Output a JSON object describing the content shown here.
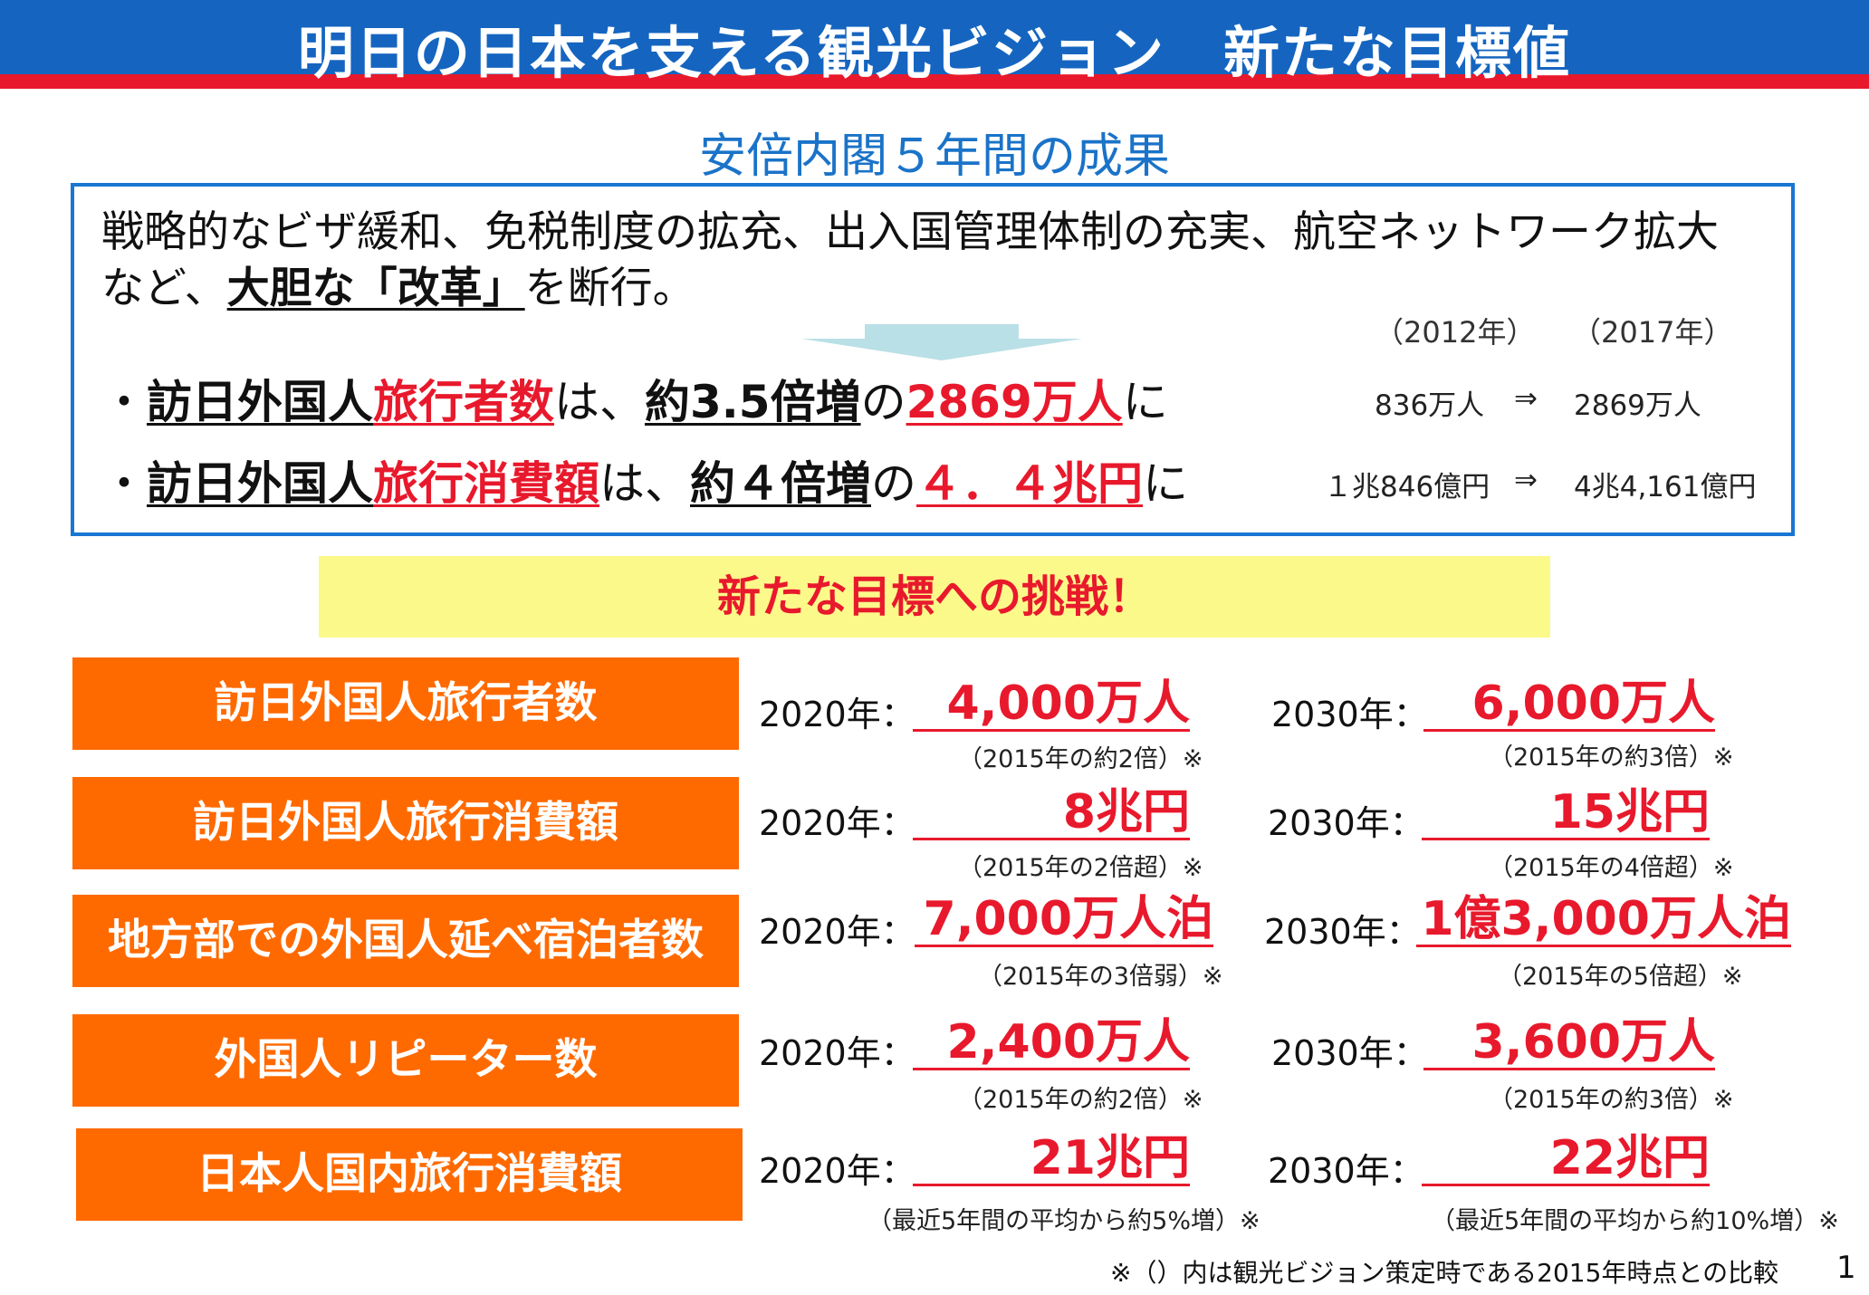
{
  "header": {
    "title": "明日の日本を支える観光ビジョン　新たな目標値"
  },
  "subtitle": "安倍内閣５年間の成果",
  "results": {
    "intro_line1": "戦略的なビザ緩和、免税制度の拡充、出入国管理体制の充実、航空ネットワーク拡大",
    "intro_line2_a": "など、",
    "intro_line2_b": "大胆な「改革」",
    "intro_line2_c": "を断行。",
    "year_from": "（2012年）",
    "year_to": "（2017年）",
    "bullet1": {
      "dot": "・",
      "a": "訪日外国人",
      "b": "旅行者数",
      "c": "は、",
      "d": "約3.5倍増",
      "e": "の",
      "f": "2869万人",
      "g": "に",
      "from": "836万人",
      "arrow": "⇒",
      "to": "2869万人"
    },
    "bullet2": {
      "dot": "・",
      "a": "訪日外国人",
      "b": "旅行消費額",
      "c": "は、",
      "d": "約４倍増",
      "e": "の",
      "f": "４．４兆円",
      "g": "に",
      "from": "１兆846億円",
      "arrow": "⇒",
      "to": "4兆4,161億円"
    }
  },
  "challenge": "新たな目標への挑戦！",
  "targets": [
    {
      "label": "訪日外国人旅行者数",
      "y2020": "2020年：",
      "v2020": "4,000万人",
      "n2020": "（2015年の約2倍）※",
      "y2030": "2030年：",
      "v2030": "6,000万人",
      "n2030": "（2015年の約3倍）※"
    },
    {
      "label": "訪日外国人旅行消費額",
      "y2020": "2020年：",
      "v2020": "8兆円",
      "n2020": "（2015年の2倍超）※",
      "y2030": "2030年：",
      "v2030": "15兆円",
      "n2030": "（2015年の4倍超）※"
    },
    {
      "label": "地方部での外国人延べ宿泊者数",
      "y2020": "2020年：",
      "v2020": "7,000万人泊",
      "n2020": "（2015年の3倍弱）※",
      "y2030": "2030年：",
      "v2030": "1億3,000万人泊",
      "n2030": "（2015年の5倍超）※"
    },
    {
      "label": "外国人リピーター数",
      "y2020": "2020年：",
      "v2020": "2,400万人",
      "n2020": "（2015年の約2倍）※",
      "y2030": "2030年：",
      "v2030": "3,600万人",
      "n2030": "（2015年の約3倍）※"
    },
    {
      "label": "日本人国内旅行消費額",
      "y2020": "2020年：",
      "v2020": "21兆円",
      "n2020": "（最近5年間の平均から約5%増）※",
      "y2030": "2030年：",
      "v2030": "22兆円",
      "n2030": "（最近5年間の平均から約10%増）※"
    }
  ],
  "footnote": "※（）内は観光ビジョン策定時である2015年時点との比較",
  "page_number": "1",
  "colors": {
    "title_blue": "#1565c0",
    "accent_red": "#e8192c",
    "label_orange": "#ff6a00",
    "banner_yellow": "#fbf98a",
    "subtitle_blue": "#1a73c8"
  }
}
